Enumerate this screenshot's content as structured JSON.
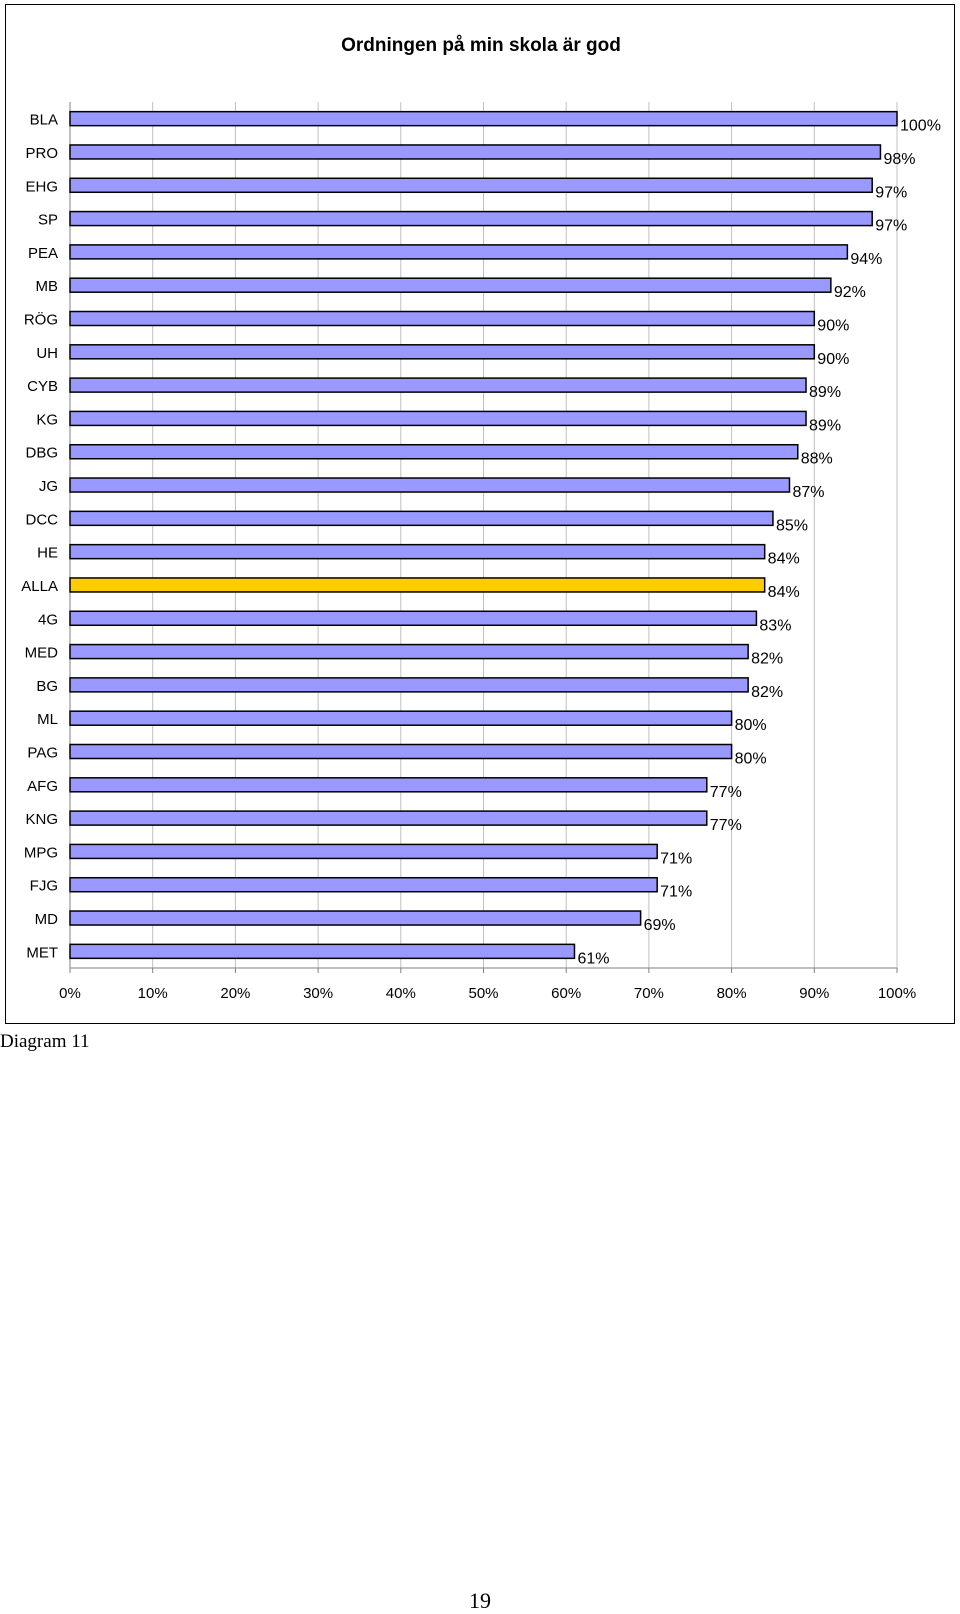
{
  "chart_data": {
    "type": "bar",
    "orientation": "horizontal",
    "title": "Ordningen på min skola är god",
    "categories": [
      "BLA",
      "PRO",
      "EHG",
      "SP",
      "PEA",
      "MB",
      "RÖG",
      "UH",
      "CYB",
      "KG",
      "DBG",
      "JG",
      "DCC",
      "HE",
      "ALLA",
      "4G",
      "MED",
      "BG",
      "ML",
      "PAG",
      "AFG",
      "KNG",
      "MPG",
      "FJG",
      "MD",
      "MET"
    ],
    "values": [
      100,
      98,
      97,
      97,
      94,
      92,
      90,
      90,
      89,
      89,
      88,
      87,
      85,
      84,
      84,
      83,
      82,
      82,
      80,
      80,
      77,
      77,
      71,
      71,
      69,
      61
    ],
    "value_labels": [
      "100%",
      "98%",
      "97%",
      "97%",
      "94%",
      "92%",
      "90%",
      "90%",
      "89%",
      "89%",
      "88%",
      "87%",
      "85%",
      "84%",
      "84%",
      "83%",
      "82%",
      "82%",
      "80%",
      "80%",
      "77%",
      "77%",
      "71%",
      "71%",
      "69%",
      "61%"
    ],
    "highlight_category": "ALLA",
    "x_ticks": [
      "0%",
      "10%",
      "20%",
      "30%",
      "40%",
      "50%",
      "60%",
      "70%",
      "80%",
      "90%",
      "100%"
    ],
    "xlim": [
      0,
      100
    ],
    "grid": true,
    "legend": "none",
    "colors": {
      "bar": "#9999FF",
      "highlight": "#FFCC00",
      "grid": "#C0C0C0",
      "bar_edge": "#000000"
    }
  },
  "caption": "Diagram 11",
  "page_number": "19"
}
